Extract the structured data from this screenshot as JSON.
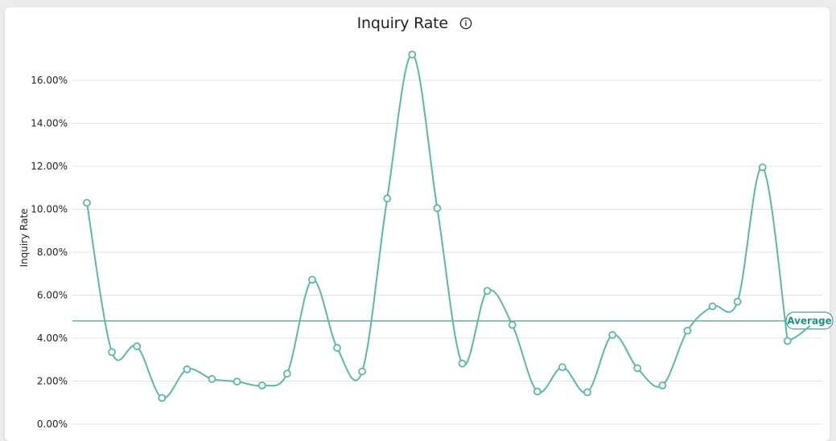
{
  "header": {
    "title": "Inquiry Rate",
    "info_icon": "info-circle-icon"
  },
  "colors": {
    "line": "#5cb8a6",
    "average_line": "#2a8c7e",
    "grid": "#e3e3e3",
    "marker_fill": "#ffffff"
  },
  "chart_data": {
    "type": "line",
    "title": "Inquiry Rate",
    "ylabel": "Inquiry Rate",
    "xlabel": "",
    "ylim": [
      0,
      17.3
    ],
    "y_ticks": [
      "0.00%",
      "2.00%",
      "4.00%",
      "6.00%",
      "8.00%",
      "10.00%",
      "12.00%",
      "14.00%",
      "16.00%"
    ],
    "y_tick_values": [
      0,
      2,
      4,
      6,
      8,
      10,
      12,
      14,
      16
    ],
    "grid": true,
    "smooth": true,
    "values": [
      10.3,
      3.35,
      3.62,
      1.22,
      2.55,
      2.1,
      1.98,
      1.8,
      2.35,
      6.72,
      3.55,
      2.45,
      10.5,
      17.2,
      10.05,
      2.82,
      6.2,
      4.62,
      1.52,
      2.65,
      1.48,
      4.15,
      2.6,
      1.8,
      4.35,
      5.48,
      5.7,
      11.95,
      3.87
    ],
    "average": {
      "label": "Average",
      "value": 4.8
    }
  }
}
